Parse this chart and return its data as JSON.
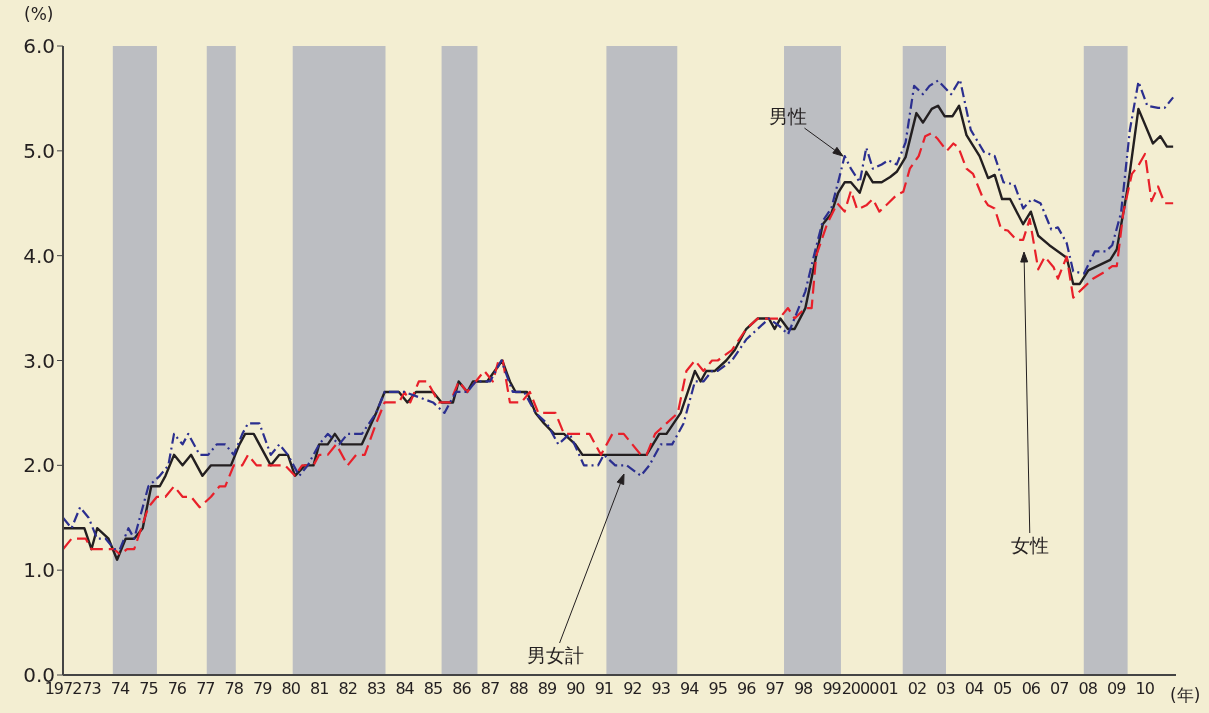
{
  "chart_data": {
    "type": "line",
    "ylabel": "(%)",
    "xlabel": "(年)",
    "xlim": [
      1972,
      2011.1
    ],
    "ylim": [
      0,
      6
    ],
    "xticks": [
      {
        "value": 1972,
        "label": "1972"
      },
      {
        "value": 1973,
        "label": "73"
      },
      {
        "value": 1974,
        "label": "74"
      },
      {
        "value": 1975,
        "label": "75"
      },
      {
        "value": 1976,
        "label": "76"
      },
      {
        "value": 1977,
        "label": "77"
      },
      {
        "value": 1978,
        "label": "78"
      },
      {
        "value": 1979,
        "label": "79"
      },
      {
        "value": 1980,
        "label": "80"
      },
      {
        "value": 1981,
        "label": "81"
      },
      {
        "value": 1982,
        "label": "82"
      },
      {
        "value": 1983,
        "label": "83"
      },
      {
        "value": 1984,
        "label": "84"
      },
      {
        "value": 1985,
        "label": "85"
      },
      {
        "value": 1986,
        "label": "86"
      },
      {
        "value": 1987,
        "label": "87"
      },
      {
        "value": 1988,
        "label": "88"
      },
      {
        "value": 1989,
        "label": "89"
      },
      {
        "value": 1990,
        "label": "90"
      },
      {
        "value": 1991,
        "label": "91"
      },
      {
        "value": 1992,
        "label": "92"
      },
      {
        "value": 1993,
        "label": "93"
      },
      {
        "value": 1994,
        "label": "94"
      },
      {
        "value": 1995,
        "label": "95"
      },
      {
        "value": 1996,
        "label": "96"
      },
      {
        "value": 1997,
        "label": "97"
      },
      {
        "value": 1998,
        "label": "98"
      },
      {
        "value": 1999,
        "label": "99"
      },
      {
        "value": 2000,
        "label": "2000"
      },
      {
        "value": 2001,
        "label": "01"
      },
      {
        "value": 2002,
        "label": "02"
      },
      {
        "value": 2003,
        "label": "03"
      },
      {
        "value": 2004,
        "label": "04"
      },
      {
        "value": 2005,
        "label": "05"
      },
      {
        "value": 2006,
        "label": "06"
      },
      {
        "value": 2007,
        "label": "07"
      },
      {
        "value": 2008,
        "label": "08"
      },
      {
        "value": 2009,
        "label": "09"
      },
      {
        "value": 2010,
        "label": "10"
      }
    ],
    "yticks": [
      {
        "value": 0,
        "label": "0.0"
      },
      {
        "value": 1,
        "label": "1.0"
      },
      {
        "value": 2,
        "label": "2.0"
      },
      {
        "value": 3,
        "label": "3.0"
      },
      {
        "value": 4,
        "label": "4.0"
      },
      {
        "value": 5,
        "label": "5.0"
      },
      {
        "value": 6,
        "label": "6.0"
      }
    ],
    "grid": false,
    "legend": false,
    "marker": "none",
    "bands": [
      {
        "axis": "x",
        "from": 1973.75,
        "to": 1975.3,
        "color": "#bcbec2"
      },
      {
        "axis": "x",
        "from": 1977.05,
        "to": 1978.07,
        "color": "#bcbec2"
      },
      {
        "axis": "x",
        "from": 1980.07,
        "to": 1983.33,
        "color": "#bcbec2"
      },
      {
        "axis": "x",
        "from": 1985.3,
        "to": 1986.56,
        "color": "#bcbec2"
      },
      {
        "axis": "x",
        "from": 1991.09,
        "to": 1993.58,
        "color": "#bcbec2"
      },
      {
        "axis": "x",
        "from": 1997.33,
        "to": 1999.33,
        "color": "#bcbec2"
      },
      {
        "axis": "x",
        "from": 2001.5,
        "to": 2003.02,
        "color": "#bcbec2"
      },
      {
        "axis": "x",
        "from": 2007.86,
        "to": 2009.4,
        "color": "#bcbec2"
      }
    ],
    "annotations": [
      {
        "text": "男性",
        "x": 1999.4,
        "y": 4.95
      },
      "男女計",
      "女性"
    ],
    "series": [
      {
        "color": "#231f20",
        "line_style": "solid",
        "x": [
          1972,
          1972.75,
          1973.0,
          1973.2,
          1973.6,
          1973.9,
          1974.2,
          1974.5,
          1974.8,
          1975.1,
          1975.4,
          1975.6,
          1975.9,
          1976.2,
          1976.5,
          1976.9,
          1977.2,
          1977.9,
          1978.2,
          1978.4,
          1978.7,
          1979.3,
          1979.6,
          1979.9,
          1980.15,
          1980.5,
          1980.8,
          1981.0,
          1981.3,
          1981.55,
          1981.8,
          1982.5,
          1983.0,
          1983.3,
          1983.8,
          1984.1,
          1984.4,
          1985.0,
          1985.3,
          1985.7,
          1985.9,
          1986.2,
          1986.4,
          1986.9,
          1987.43,
          1987.7,
          1987.9,
          1988.3,
          1988.6,
          1988.9,
          1989.26,
          1989.6,
          1990.0,
          1990.25,
          1992.5,
          1992.95,
          1993.2,
          1993.7,
          1994.2,
          1994.4,
          1994.6,
          1994.9,
          1995.3,
          1995.6,
          1996.0,
          1996.4,
          1996.8,
          1997.0,
          1997.2,
          1997.47,
          1997.7,
          1998.08,
          1998.69,
          1998.99,
          1999.23,
          1999.46,
          1999.68,
          1999.99,
          2000.22,
          2000.45,
          2000.76,
          2001.06,
          2001.29,
          2001.6,
          2001.98,
          2002.21,
          2002.52,
          2002.74,
          2002.97,
          2003.25,
          2003.48,
          2003.74,
          2004.2,
          2004.5,
          2004.73,
          2004.99,
          2005.27,
          2005.73,
          2006.0,
          2006.26,
          2006.65,
          2007.26,
          2007.49,
          2007.72,
          2008.02,
          2008.79,
          2009.02,
          2009.4,
          2009.78,
          2010.29,
          2010.55,
          2010.78,
          2011.0
        ],
        "values": [
          1.4,
          1.4,
          1.2,
          1.4,
          1.3,
          1.1,
          1.3,
          1.3,
          1.4,
          1.8,
          1.8,
          1.9,
          2.1,
          2.0,
          2.1,
          1.9,
          2.0,
          2.0,
          2.2,
          2.3,
          2.3,
          2.0,
          2.1,
          2.1,
          1.9,
          2.0,
          2.0,
          2.2,
          2.2,
          2.3,
          2.2,
          2.2,
          2.5,
          2.7,
          2.7,
          2.6,
          2.7,
          2.7,
          2.6,
          2.6,
          2.8,
          2.7,
          2.8,
          2.8,
          3.0,
          2.8,
          2.7,
          2.7,
          2.5,
          2.4,
          2.3,
          2.3,
          2.2,
          2.1,
          2.1,
          2.3,
          2.3,
          2.5,
          2.9,
          2.8,
          2.9,
          2.9,
          3.0,
          3.1,
          3.3,
          3.4,
          3.4,
          3.3,
          3.4,
          3.3,
          3.3,
          3.5,
          4.3,
          4.4,
          4.6,
          4.7,
          4.7,
          4.6,
          4.8,
          4.7,
          4.7,
          4.75,
          4.8,
          4.94,
          5.36,
          5.27,
          5.4,
          5.43,
          5.33,
          5.33,
          5.43,
          5.15,
          4.95,
          4.74,
          4.77,
          4.54,
          4.54,
          4.3,
          4.42,
          4.19,
          4.1,
          3.98,
          3.73,
          3.73,
          3.86,
          3.96,
          4.06,
          4.64,
          5.4,
          5.07,
          5.14,
          5.04,
          5.04
        ]
      },
      {
        "color": "#e8202a",
        "line_style": "dashed",
        "x": [
          1972,
          1972.3,
          1972.8,
          1973.0,
          1973.8,
          1974.0,
          1974.25,
          1974.5,
          1975.0,
          1975.3,
          1975.6,
          1975.9,
          1976.2,
          1976.5,
          1976.8,
          1977.2,
          1977.5,
          1977.7,
          1978.0,
          1978.3,
          1978.5,
          1978.8,
          1979.3,
          1979.8,
          1980.15,
          1980.4,
          1980.8,
          1981.0,
          1981.3,
          1981.6,
          1982.0,
          1982.3,
          1982.6,
          1983.0,
          1983.3,
          1983.8,
          1984.0,
          1984.2,
          1984.5,
          1984.8,
          1985.2,
          1985.6,
          1985.9,
          1986.2,
          1986.5,
          1986.8,
          1987.1,
          1987.3,
          1987.45,
          1987.7,
          1988.1,
          1988.4,
          1988.7,
          1989.3,
          1989.6,
          1990.0,
          1990.5,
          1990.9,
          1991.3,
          1991.7,
          1992.0,
          1992.3,
          1992.5,
          1992.8,
          1993.2,
          1993.6,
          1993.9,
          1994.2,
          1994.5,
          1994.8,
          1995.0,
          1995.5,
          1996.0,
          1996.4,
          1996.8,
          1997.16,
          1997.47,
          1997.7,
          1998.08,
          1998.3,
          1998.46,
          1998.84,
          1999.2,
          1999.46,
          1999.68,
          1999.9,
          2000.22,
          2000.45,
          2000.68,
          2000.99,
          2001.29,
          2001.52,
          2001.75,
          2002.06,
          2002.29,
          2002.52,
          2002.74,
          2003.05,
          2003.28,
          2003.46,
          2003.74,
          2003.97,
          2004.3,
          2004.5,
          2004.73,
          2004.96,
          2005.19,
          2005.5,
          2005.73,
          2005.96,
          2006.26,
          2006.49,
          2006.8,
          2006.95,
          2007.26,
          2007.49,
          2007.87,
          2008.18,
          2008.56,
          2008.86,
          2009.02,
          2009.25,
          2009.55,
          2009.78,
          2010.01,
          2010.24,
          2010.47,
          2010.7,
          2011.0
        ],
        "values": [
          1.2,
          1.3,
          1.3,
          1.2,
          1.2,
          1.15,
          1.2,
          1.2,
          1.6,
          1.7,
          1.7,
          1.8,
          1.7,
          1.7,
          1.6,
          1.7,
          1.8,
          1.8,
          2.0,
          2.0,
          2.1,
          2.0,
          2.0,
          2.0,
          1.9,
          2.0,
          2.0,
          2.1,
          2.1,
          2.2,
          2.0,
          2.1,
          2.1,
          2.4,
          2.6,
          2.6,
          2.7,
          2.6,
          2.8,
          2.8,
          2.6,
          2.6,
          2.8,
          2.7,
          2.8,
          2.9,
          2.8,
          3.0,
          3.0,
          2.6,
          2.6,
          2.7,
          2.5,
          2.5,
          2.3,
          2.3,
          2.3,
          2.1,
          2.3,
          2.3,
          2.2,
          2.1,
          2.1,
          2.3,
          2.4,
          2.5,
          2.9,
          3.0,
          2.9,
          3.0,
          3.0,
          3.1,
          3.3,
          3.4,
          3.4,
          3.4,
          3.5,
          3.4,
          3.5,
          3.5,
          4.0,
          4.3,
          4.5,
          4.42,
          4.62,
          4.44,
          4.48,
          4.54,
          4.42,
          4.5,
          4.58,
          4.61,
          4.83,
          4.95,
          5.14,
          5.17,
          5.11,
          5.0,
          5.07,
          5.03,
          4.83,
          4.78,
          4.56,
          4.48,
          4.45,
          4.25,
          4.24,
          4.15,
          4.15,
          4.35,
          3.87,
          3.99,
          3.89,
          3.78,
          3.99,
          3.6,
          3.7,
          3.78,
          3.84,
          3.9,
          3.9,
          4.41,
          4.78,
          4.86,
          4.97,
          4.52,
          4.66,
          4.5,
          4.5
        ]
      },
      {
        "color": "#2b2f8f",
        "line_style": "dashed",
        "x": [
          1972,
          1972.3,
          1972.6,
          1972.9,
          1973.2,
          1973.5,
          1973.8,
          1974.0,
          1974.3,
          1974.5,
          1975.0,
          1975.4,
          1975.7,
          1975.9,
          1976.2,
          1976.4,
          1976.8,
          1977.1,
          1977.4,
          1977.7,
          1978.0,
          1978.3,
          1978.5,
          1978.9,
          1979.3,
          1979.6,
          1979.9,
          1980.3,
          1980.6,
          1981.0,
          1981.3,
          1981.7,
          1982.0,
          1982.5,
          1983.0,
          1983.3,
          1984.0,
          1985.0,
          1985.4,
          1985.8,
          1986.2,
          1986.5,
          1987.0,
          1987.4,
          1987.8,
          1988.2,
          1988.6,
          1989.0,
          1989.4,
          1989.8,
          1990.3,
          1990.8,
          1991.0,
          1991.4,
          1991.8,
          1992.3,
          1992.6,
          1993.0,
          1993.4,
          1993.8,
          1994.2,
          1994.5,
          1994.8,
          1995.0,
          1995.5,
          1996.0,
          1996.4,
          1996.8,
          1997.16,
          1997.47,
          1997.77,
          1998.08,
          1998.38,
          1998.69,
          1998.99,
          1999.23,
          1999.46,
          1999.68,
          1999.99,
          2000.22,
          2000.45,
          2000.76,
          2000.99,
          2001.29,
          2001.6,
          2001.9,
          2002.21,
          2002.44,
          2002.74,
          2003.2,
          2003.51,
          2003.89,
          2004.35,
          2004.73,
          2005.04,
          2005.42,
          2005.73,
          2006.03,
          2006.34,
          2006.72,
          2006.95,
          2007.26,
          2007.49,
          2007.87,
          2008.25,
          2008.63,
          2008.86,
          2009.17,
          2009.48,
          2009.78,
          2010.09,
          2010.47,
          2010.7,
          2011.0
        ],
        "values": [
          1.5,
          1.4,
          1.6,
          1.5,
          1.3,
          1.3,
          1.2,
          1.2,
          1.4,
          1.3,
          1.8,
          1.9,
          2.0,
          2.3,
          2.2,
          2.3,
          2.1,
          2.1,
          2.2,
          2.2,
          2.1,
          2.3,
          2.4,
          2.4,
          2.1,
          2.2,
          2.1,
          1.9,
          2.0,
          2.2,
          2.3,
          2.2,
          2.3,
          2.3,
          2.5,
          2.7,
          2.7,
          2.6,
          2.5,
          2.7,
          2.7,
          2.8,
          2.8,
          3.0,
          2.7,
          2.7,
          2.5,
          2.4,
          2.2,
          2.3,
          2.0,
          2.0,
          2.1,
          2.0,
          2.0,
          1.9,
          2.0,
          2.2,
          2.2,
          2.4,
          2.8,
          2.8,
          2.9,
          2.9,
          3.0,
          3.2,
          3.3,
          3.4,
          3.33,
          3.25,
          3.45,
          3.66,
          4.0,
          4.33,
          4.45,
          4.7,
          4.95,
          4.83,
          4.7,
          5.03,
          4.83,
          4.87,
          4.91,
          4.87,
          5.08,
          5.62,
          5.54,
          5.62,
          5.67,
          5.54,
          5.68,
          5.2,
          4.99,
          4.95,
          4.7,
          4.68,
          4.45,
          4.54,
          4.5,
          4.25,
          4.27,
          4.12,
          3.85,
          3.83,
          4.04,
          4.04,
          4.1,
          4.41,
          5.2,
          5.66,
          5.43,
          5.41,
          5.41,
          5.51
        ]
      }
    ]
  }
}
